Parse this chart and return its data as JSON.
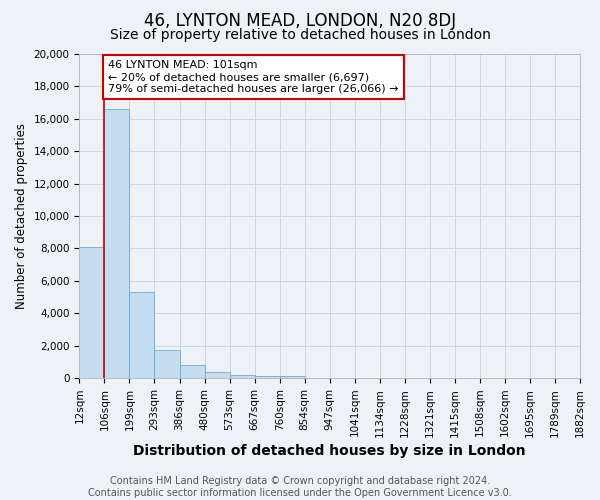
{
  "title": "46, LYNTON MEAD, LONDON, N20 8DJ",
  "subtitle": "Size of property relative to detached houses in London",
  "xlabel": "Distribution of detached houses by size in London",
  "ylabel": "Number of detached properties",
  "bin_labels": [
    "12sqm",
    "106sqm",
    "199sqm",
    "293sqm",
    "386sqm",
    "480sqm",
    "573sqm",
    "667sqm",
    "760sqm",
    "854sqm",
    "947sqm",
    "1041sqm",
    "1134sqm",
    "1228sqm",
    "1321sqm",
    "1415sqm",
    "1508sqm",
    "1602sqm",
    "1695sqm",
    "1789sqm",
    "1882sqm"
  ],
  "bar_heights": [
    8100,
    16600,
    5300,
    1750,
    780,
    350,
    200,
    150,
    150,
    0,
    0,
    0,
    0,
    0,
    0,
    0,
    0,
    0,
    0,
    0
  ],
  "bar_color": "#c5ddf0",
  "bar_edge_color": "#6aaed6",
  "property_line_x": 1,
  "property_line_color": "#cc0000",
  "ylim": [
    0,
    20000
  ],
  "yticks": [
    0,
    2000,
    4000,
    6000,
    8000,
    10000,
    12000,
    14000,
    16000,
    18000,
    20000
  ],
  "annotation_title": "46 LYNTON MEAD: 101sqm",
  "annotation_line1": "← 20% of detached houses are smaller (6,697)",
  "annotation_line2": "79% of semi-detached houses are larger (26,066) →",
  "annotation_box_color": "#ffffff",
  "annotation_box_edge": "#cc0000",
  "footer_line1": "Contains HM Land Registry data © Crown copyright and database right 2024.",
  "footer_line2": "Contains public sector information licensed under the Open Government Licence v3.0.",
  "bg_color": "#eef2f7",
  "grid_color": "#c8d8e8",
  "title_fontsize": 12,
  "subtitle_fontsize": 10,
  "xlabel_fontsize": 10,
  "ylabel_fontsize": 8.5,
  "tick_fontsize": 7.5,
  "footer_fontsize": 7,
  "ann_fontsize": 8
}
